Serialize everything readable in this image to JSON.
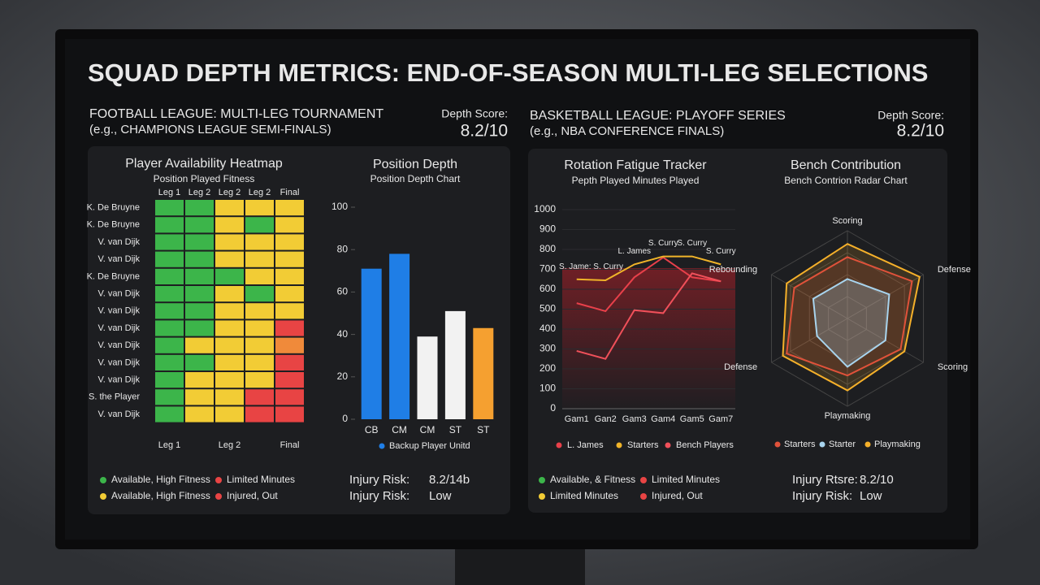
{
  "title": "SQUAD DEPTH METRICS: END-OF-SEASON MULTI-LEG SELECTIONS",
  "football": {
    "heading": "FOOTBALL LEAGUE: MULTI-LEG TOURNAMENT",
    "subheading": "(e.g., CHAMPIONS LEAGUE SEMI-FINALS)",
    "depth_score_label": "Depth Score:",
    "depth_score": "8.2/10",
    "heatmap": {
      "type": "heatmap",
      "title": "Player Availability Heatmap",
      "subtitle": "Position Played Fitness",
      "columns": [
        "Leg 1",
        "Leg 2",
        "Leg 2",
        "Leg 2",
        "Final"
      ],
      "footer_columns": [
        "Leg 1",
        "Leg 2",
        "Final"
      ],
      "rows": [
        {
          "name": "K. De Bruyne",
          "cells": [
            "#3cb54a",
            "#3cb54a",
            "#f2cc35",
            "#f2cc35",
            "#f2cc35"
          ]
        },
        {
          "name": "K. De Bruyne",
          "cells": [
            "#3cb54a",
            "#3cb54a",
            "#f2cc35",
            "#3cb54a",
            "#f2cc35"
          ]
        },
        {
          "name": "V. van Dijk",
          "cells": [
            "#3cb54a",
            "#3cb54a",
            "#f2cc35",
            "#f2cc35",
            "#f2cc35"
          ]
        },
        {
          "name": "V. van Dijk",
          "cells": [
            "#3cb54a",
            "#3cb54a",
            "#f2cc35",
            "#f2cc35",
            "#f2cc35"
          ]
        },
        {
          "name": "K. De Bruyne",
          "cells": [
            "#3cb54a",
            "#3cb54a",
            "#3cb54a",
            "#f2cc35",
            "#f2cc35"
          ]
        },
        {
          "name": "V. van Dijk",
          "cells": [
            "#3cb54a",
            "#3cb54a",
            "#f2cc35",
            "#3cb54a",
            "#f2cc35"
          ]
        },
        {
          "name": "V. van Dijk",
          "cells": [
            "#3cb54a",
            "#3cb54a",
            "#f2cc35",
            "#f2cc35",
            "#f2cc35"
          ]
        },
        {
          "name": "V. van Dijk",
          "cells": [
            "#3cb54a",
            "#3cb54a",
            "#f2cc35",
            "#f2cc35",
            "#e84444"
          ]
        },
        {
          "name": "V. van Dijk",
          "cells": [
            "#3cb54a",
            "#f2cc35",
            "#f2cc35",
            "#f2cc35",
            "#f08a3a"
          ]
        },
        {
          "name": "V. van Dijk",
          "cells": [
            "#3cb54a",
            "#3cb54a",
            "#f2cc35",
            "#f2cc35",
            "#e84444"
          ]
        },
        {
          "name": "V. van Dijk",
          "cells": [
            "#3cb54a",
            "#f2cc35",
            "#f2cc35",
            "#f2cc35",
            "#e84444"
          ]
        },
        {
          "name": "S. the Player",
          "cells": [
            "#3cb54a",
            "#f2cc35",
            "#f2cc35",
            "#e84444",
            "#e84444"
          ]
        },
        {
          "name": "V. van Dijk",
          "cells": [
            "#3cb54a",
            "#f2cc35",
            "#f2cc35",
            "#e84444",
            "#e84444"
          ]
        }
      ]
    },
    "bar_chart": {
      "type": "bar",
      "title": "Position Depth",
      "subtitle": "Position Depth Chart",
      "categories": [
        "CB",
        "CM",
        "CM",
        "ST",
        "ST"
      ],
      "values": [
        71,
        78,
        39,
        51,
        43
      ],
      "colors": [
        "#1f7ee6",
        "#1f7ee6",
        "#f2f2f2",
        "#f2f2f2",
        "#f5a030"
      ],
      "ylim": [
        0,
        100
      ],
      "yticks": [
        0,
        20,
        40,
        60,
        80,
        100
      ],
      "legend": {
        "label": "Backup Player Unitd",
        "color": "#1f7ee6"
      }
    },
    "legend": [
      {
        "label": "Available, High Fitness",
        "color": "#3cb54a"
      },
      {
        "label": "Limited Minutes",
        "color": "#e84444"
      },
      {
        "label": "Available, High Fitness",
        "color": "#f2cc35"
      },
      {
        "label": "Injured, Out",
        "color": "#e84444"
      }
    ],
    "stats": [
      {
        "label": "Injury Risk:",
        "value": "8.2/14b"
      },
      {
        "label": "Injury Risk:",
        "value": "Low"
      }
    ]
  },
  "basketball": {
    "heading": "BASKETBALL LEAGUE: PLAYOFF SERIES",
    "subheading": "(e.g., NBA CONFERENCE FINALS)",
    "depth_score_label": "Depth Score:",
    "depth_score": "8.2/10",
    "line_chart": {
      "type": "line",
      "title": "Rotation Fatigue Tracker",
      "subtitle": "Pepth Played Minutes Played",
      "categories": [
        "Gam1",
        "Gan2",
        "Gam3",
        "Gam4",
        "Gam5",
        "Gam7"
      ],
      "ylim": [
        0,
        1000
      ],
      "yticks": [
        0,
        100,
        200,
        300,
        400,
        500,
        600,
        700,
        800,
        900,
        1000
      ],
      "series": [
        {
          "name": "L. James",
          "color": "#e8404a",
          "values": [
            530,
            490,
            660,
            760,
            660,
            640
          ]
        },
        {
          "name": "Starters",
          "color": "#f0b429",
          "values": [
            650,
            645,
            725,
            765,
            765,
            725
          ]
        },
        {
          "name": "Bench Players",
          "color": "#f0505a",
          "values": [
            290,
            250,
            495,
            480,
            680,
            640
          ]
        }
      ],
      "annotations": [
        "S. Jame: S. Curry",
        "L. James",
        "S. Curry",
        "S. Curry",
        "S. Curry"
      ]
    },
    "radar_chart": {
      "type": "radar",
      "title": "Bench Contribution",
      "subtitle": "Bench Contrion Radar Chart",
      "axes": [
        "Scoring",
        "Defense",
        "Scoring",
        "Playmaking",
        "Defense",
        "Rebounding"
      ],
      "rlim": [
        0,
        100
      ],
      "series": [
        {
          "name": "Starters",
          "color": "#e0523a",
          "values": [
            70,
            85,
            70,
            65,
            80,
            70
          ]
        },
        {
          "name": "Starter",
          "color": "#a8d4ee",
          "values": [
            45,
            55,
            50,
            55,
            40,
            45
          ]
        },
        {
          "name": "Playmaking",
          "color": "#f5b02a",
          "values": [
            85,
            95,
            75,
            82,
            85,
            80
          ]
        }
      ]
    },
    "legend": [
      {
        "label": "Available, & Fitness",
        "color": "#3cb54a"
      },
      {
        "label": "Limited Minutes",
        "color": "#e84444"
      },
      {
        "label": "Limited Minutes",
        "color": "#f2cc35"
      },
      {
        "label": "Injured, Out",
        "color": "#e84444"
      }
    ],
    "stats": [
      {
        "label": "Injury Rtsre:",
        "value": "8.2/10"
      },
      {
        "label": "Injury Risk:",
        "value": "Low"
      }
    ]
  }
}
